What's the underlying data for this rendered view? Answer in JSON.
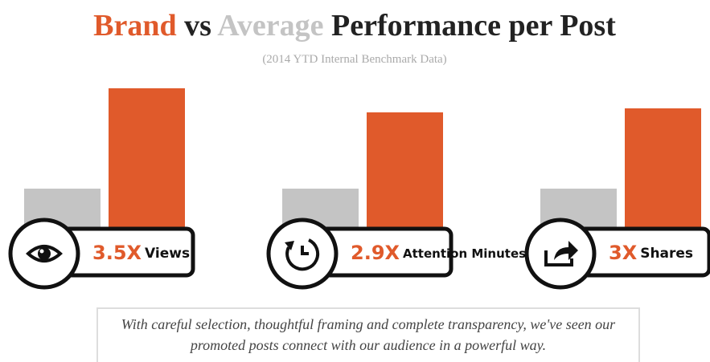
{
  "chart_data": {
    "type": "bar",
    "title": "Brand vs Average Performance per Post",
    "subtitle": "(2014 YTD Internal Benchmark Data)",
    "categories": [
      "Views",
      "Attention Minutes",
      "Shares"
    ],
    "series": [
      {
        "name": "Brand",
        "color": "#e05a2b",
        "values": [
          3.5,
          2.9,
          3
        ],
        "value_labels": [
          "3.5X",
          "2.9X",
          "3X"
        ]
      },
      {
        "name": "Average",
        "color": "#c4c4c4",
        "values": [
          1,
          1,
          1
        ]
      }
    ],
    "caption": "With careful selection, thoughtful framing and complete transparency, we've seen our promoted posts connect with our audience in a powerful way."
  }
}
